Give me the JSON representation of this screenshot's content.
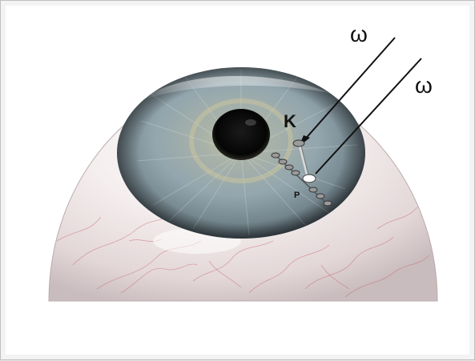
{
  "labels": {
    "omega_1": "ω",
    "omega_2": "ω",
    "k": "K",
    "p": "P"
  },
  "colors": {
    "iris": "#8a9aa0",
    "pupil": "#0b0b0b",
    "sclera": "#f1e9e8",
    "vessel": "#c4535d",
    "ray": "#111111"
  }
}
